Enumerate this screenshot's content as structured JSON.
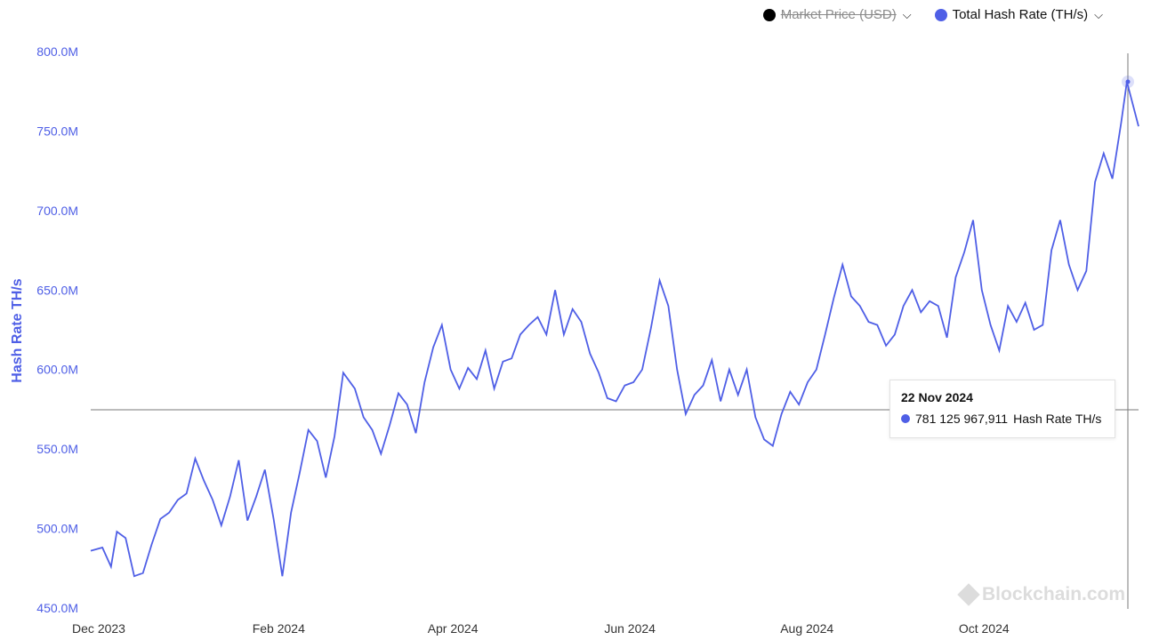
{
  "colors": {
    "accent": "#4f5fe6",
    "axis_text": "#4f5fe6",
    "tick_x": "#333333",
    "crosshair": "#7a7a7a"
  },
  "legend": [
    {
      "label": "Market Price (USD)",
      "color": "#000000",
      "disabled": true
    },
    {
      "label": "Total Hash Rate (TH/s)",
      "color": "#4f5fe6",
      "disabled": false
    }
  ],
  "tooltip": {
    "date": "22 Nov 2024",
    "value": "781 125 967,911",
    "series": "Hash Rate TH/s"
  },
  "watermark": "Blockchain.com",
  "chart_data": {
    "type": "line",
    "ylabel": "Hash Rate TH/s",
    "ylim": [
      450000000,
      800000000
    ],
    "y_ticks": [
      "450.0M",
      "500.0M",
      "550.0M",
      "600.0M",
      "650.0M",
      "700.0M",
      "750.0M",
      "800.0M"
    ],
    "x_ticks": [
      "Dec 2023",
      "Feb 2024",
      "Apr 2024",
      "Jun 2024",
      "Aug 2024",
      "Oct 2024"
    ],
    "x_domain": [
      "2023-12-01",
      "2024-11-26"
    ],
    "x_tick_dates": [
      "2023-12-01",
      "2024-02-01",
      "2024-04-01",
      "2024-06-01",
      "2024-08-01",
      "2024-10-01"
    ],
    "series": [
      {
        "name": "Hash Rate TH/s",
        "points": [
          [
            "2023-12-01",
            486
          ],
          [
            "2023-12-05",
            488
          ],
          [
            "2023-12-08",
            476
          ],
          [
            "2023-12-10",
            498
          ],
          [
            "2023-12-13",
            494
          ],
          [
            "2023-12-16",
            470
          ],
          [
            "2023-12-19",
            472
          ],
          [
            "2023-12-22",
            490
          ],
          [
            "2023-12-25",
            506
          ],
          [
            "2023-12-28",
            510
          ],
          [
            "2023-12-31",
            518
          ],
          [
            "2024-01-03",
            522
          ],
          [
            "2024-01-06",
            544
          ],
          [
            "2024-01-09",
            530
          ],
          [
            "2024-01-12",
            518
          ],
          [
            "2024-01-15",
            502
          ],
          [
            "2024-01-18",
            520
          ],
          [
            "2024-01-21",
            543
          ],
          [
            "2024-01-24",
            505
          ],
          [
            "2024-01-27",
            520
          ],
          [
            "2024-01-30",
            537
          ],
          [
            "2024-02-02",
            506
          ],
          [
            "2024-02-05",
            470
          ],
          [
            "2024-02-08",
            510
          ],
          [
            "2024-02-11",
            535
          ],
          [
            "2024-02-14",
            562
          ],
          [
            "2024-02-17",
            555
          ],
          [
            "2024-02-20",
            532
          ],
          [
            "2024-02-23",
            558
          ],
          [
            "2024-02-26",
            598
          ],
          [
            "2024-03-01",
            588
          ],
          [
            "2024-03-04",
            570
          ],
          [
            "2024-03-07",
            562
          ],
          [
            "2024-03-10",
            547
          ],
          [
            "2024-03-13",
            565
          ],
          [
            "2024-03-16",
            585
          ],
          [
            "2024-03-19",
            578
          ],
          [
            "2024-03-22",
            560
          ],
          [
            "2024-03-25",
            592
          ],
          [
            "2024-03-28",
            614
          ],
          [
            "2024-03-31",
            628
          ],
          [
            "2024-04-03",
            600
          ],
          [
            "2024-04-06",
            588
          ],
          [
            "2024-04-09",
            601
          ],
          [
            "2024-04-12",
            594
          ],
          [
            "2024-04-15",
            612
          ],
          [
            "2024-04-18",
            588
          ],
          [
            "2024-04-21",
            605
          ],
          [
            "2024-04-24",
            607
          ],
          [
            "2024-04-27",
            622
          ],
          [
            "2024-04-30",
            628
          ],
          [
            "2024-05-03",
            633
          ],
          [
            "2024-05-06",
            622
          ],
          [
            "2024-05-09",
            650
          ],
          [
            "2024-05-12",
            622
          ],
          [
            "2024-05-15",
            638
          ],
          [
            "2024-05-18",
            630
          ],
          [
            "2024-05-21",
            610
          ],
          [
            "2024-05-24",
            598
          ],
          [
            "2024-05-27",
            582
          ],
          [
            "2024-05-30",
            580
          ],
          [
            "2024-06-02",
            590
          ],
          [
            "2024-06-05",
            592
          ],
          [
            "2024-06-08",
            600
          ],
          [
            "2024-06-11",
            626
          ],
          [
            "2024-06-14",
            656
          ],
          [
            "2024-06-17",
            640
          ],
          [
            "2024-06-20",
            600
          ],
          [
            "2024-06-23",
            572
          ],
          [
            "2024-06-26",
            584
          ],
          [
            "2024-06-29",
            590
          ],
          [
            "2024-07-02",
            606
          ],
          [
            "2024-07-05",
            580
          ],
          [
            "2024-07-08",
            600
          ],
          [
            "2024-07-11",
            584
          ],
          [
            "2024-07-14",
            600
          ],
          [
            "2024-07-17",
            570
          ],
          [
            "2024-07-20",
            556
          ],
          [
            "2024-07-23",
            552
          ],
          [
            "2024-07-26",
            572
          ],
          [
            "2024-07-29",
            586
          ],
          [
            "2024-08-01",
            578
          ],
          [
            "2024-08-04",
            592
          ],
          [
            "2024-08-07",
            600
          ],
          [
            "2024-08-10",
            622
          ],
          [
            "2024-08-13",
            645
          ],
          [
            "2024-08-16",
            666
          ],
          [
            "2024-08-19",
            646
          ],
          [
            "2024-08-22",
            640
          ],
          [
            "2024-08-25",
            630
          ],
          [
            "2024-08-28",
            628
          ],
          [
            "2024-08-31",
            615
          ],
          [
            "2024-09-03",
            622
          ],
          [
            "2024-09-06",
            640
          ],
          [
            "2024-09-09",
            650
          ],
          [
            "2024-09-12",
            636
          ],
          [
            "2024-09-15",
            643
          ],
          [
            "2024-09-18",
            640
          ],
          [
            "2024-09-21",
            620
          ],
          [
            "2024-09-24",
            658
          ],
          [
            "2024-09-27",
            674
          ],
          [
            "2024-09-30",
            694
          ],
          [
            "2024-10-03",
            650
          ],
          [
            "2024-10-06",
            628
          ],
          [
            "2024-10-09",
            612
          ],
          [
            "2024-10-12",
            640
          ],
          [
            "2024-10-15",
            630
          ],
          [
            "2024-10-18",
            642
          ],
          [
            "2024-10-21",
            625
          ],
          [
            "2024-10-24",
            628
          ],
          [
            "2024-10-27",
            675
          ],
          [
            "2024-10-30",
            694
          ],
          [
            "2024-11-02",
            666
          ],
          [
            "2024-11-05",
            650
          ],
          [
            "2024-11-08",
            662
          ],
          [
            "2024-11-11",
            718
          ],
          [
            "2024-11-14",
            736
          ],
          [
            "2024-11-17",
            720
          ],
          [
            "2024-11-20",
            755
          ],
          [
            "2024-11-22",
            781
          ],
          [
            "2024-11-26",
            753
          ]
        ]
      }
    ]
  }
}
